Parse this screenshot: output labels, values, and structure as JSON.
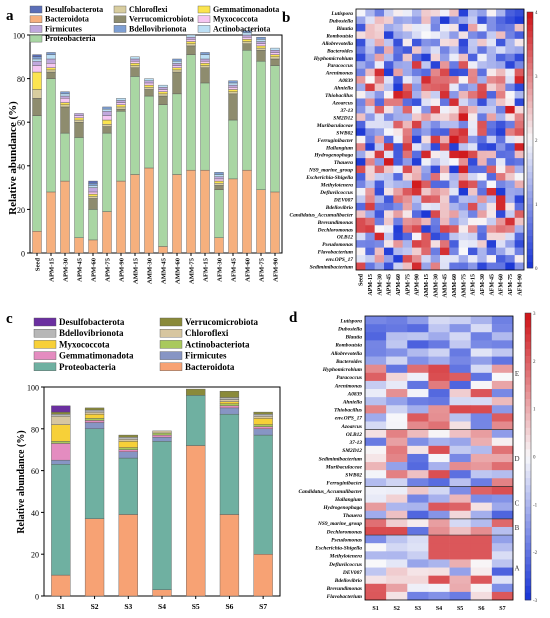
{
  "panel_labels": {
    "a": "a",
    "b": "b",
    "c": "c",
    "d": "d"
  },
  "chart_data": [
    {
      "panel": "a",
      "type": "bar",
      "ylabel": "Relative abundance (%)",
      "ylim": [
        0,
        100
      ],
      "yticks": [
        0,
        20,
        40,
        60,
        80,
        100
      ],
      "categories": [
        "Seed",
        "APM-15",
        "APM-30",
        "APM-45",
        "APM-60",
        "APM-75",
        "APM-90",
        "AMM-15",
        "AMM-30",
        "AMM-45",
        "AMM-60",
        "AMM-75",
        "AFM-15",
        "AFM-30",
        "AFM-45",
        "AFM-60",
        "AFM-75",
        "AFM-90"
      ],
      "legend": [
        "Desulfobacterota",
        "Chloroflexi",
        "Gemmatimonadota",
        "Bacteroidota",
        "Verrucomicrobiota",
        "Myxococcota",
        "Firmicutes",
        "Bdellovibrionota",
        "Actinobacteriota",
        "Proteobacteria"
      ],
      "series": [
        {
          "name": "Bacteroidota",
          "color": "#f6b07e",
          "values": [
            10,
            28,
            33,
            7,
            6,
            19,
            33,
            36,
            39,
            3,
            36,
            38,
            38,
            7,
            34,
            38,
            29,
            28
          ]
        },
        {
          "name": "Proteobacteria",
          "color": "#a9d6a3",
          "values": [
            53,
            52,
            22,
            46,
            14,
            36,
            32,
            45,
            33,
            65,
            37,
            53,
            40,
            22,
            27,
            55,
            59,
            58
          ]
        },
        {
          "name": "Verrucomicrobiota",
          "color": "#8e8c6e",
          "values": [
            8,
            3,
            12,
            7,
            5,
            3,
            1,
            4,
            3,
            4,
            10,
            4,
            7,
            2,
            12,
            3,
            5,
            3
          ]
        },
        {
          "name": "Chloroflexi",
          "color": "#d8cd9f",
          "values": [
            4,
            1,
            1,
            1,
            1,
            1,
            1,
            1,
            1,
            1,
            1,
            1,
            1,
            1,
            1,
            1,
            1,
            1
          ]
        },
        {
          "name": "Gemmatimonadota",
          "color": "#fbe44f",
          "values": [
            8,
            1,
            1,
            1,
            1,
            2,
            1,
            1,
            1,
            1,
            1,
            1,
            1,
            1,
            1,
            1,
            1,
            1
          ]
        },
        {
          "name": "Myxococcota",
          "color": "#f5c6f2",
          "values": [
            3,
            2,
            2,
            1,
            1,
            2,
            1,
            1,
            1,
            1,
            1,
            1,
            1,
            1,
            1,
            1,
            1,
            1
          ]
        },
        {
          "name": "Firmicutes",
          "color": "#c0a8dd",
          "values": [
            2,
            2,
            1,
            1,
            2,
            2,
            1,
            1,
            1,
            1,
            1,
            1,
            1,
            1,
            1,
            1,
            1,
            1
          ]
        },
        {
          "name": "Actinobacteriota",
          "color": "#bcdff5",
          "values": [
            1,
            2,
            1,
            0,
            1,
            1,
            1,
            1,
            1,
            1,
            1,
            1,
            2,
            1,
            1,
            1,
            1,
            1
          ]
        },
        {
          "name": "Bdellovibrionota",
          "color": "#7e9fd3",
          "values": [
            1,
            1,
            1,
            0,
            1,
            1,
            0,
            0,
            0,
            0,
            1,
            0,
            1,
            1,
            1,
            1,
            1,
            0
          ]
        },
        {
          "name": "Desulfobacterota",
          "color": "#5b6fb8",
          "values": [
            1,
            0,
            0,
            0,
            1,
            0,
            0,
            0,
            0,
            0,
            0,
            0,
            0,
            0,
            0,
            0,
            0,
            0
          ]
        }
      ]
    },
    {
      "panel": "b",
      "type": "heatmap",
      "rows": [
        "Lutispora",
        "Dubosiella",
        "Blautia",
        "Romboutsia",
        "Allobrevotella",
        "Bacteroides",
        "Hyphomicrobium",
        "Paracoccus",
        "Arenimonas",
        "A0839",
        "Ahniella",
        "Thiobacillus",
        "Azoarcus",
        "37-13",
        "SM2D12",
        "Muribaculaceae",
        "SWB02",
        "Ferruginibacter",
        "Hallangium",
        "Hydrogenophaga",
        "Thauera",
        "NS9_marine_group",
        "Escherichia-Shigella",
        "Methylotenera",
        "Defluviicoccus",
        "DEV007",
        "Bdellovibrio",
        "Candidatus_Accumulibacter",
        "Brevundimonas",
        "Dechloromonas",
        "OLB12",
        "Pseudomonas",
        "Flavobacterium",
        "env.OPS_17",
        "Sedimimibacterium"
      ],
      "columns": [
        "Seed",
        "APM-15",
        "APM-30",
        "APM-45",
        "APM-60",
        "APM-75",
        "APM-90",
        "AMM-15",
        "AMM-30",
        "AMM-45",
        "AMM-60",
        "AMM-75",
        "AFM-15",
        "AFM-30",
        "AFM-45",
        "AFM-60",
        "AFM-75",
        "AFM-90"
      ],
      "colorbar": {
        "ticks": [
          "4",
          "3",
          "2",
          "1",
          "0"
        ]
      }
    },
    {
      "panel": "c",
      "type": "bar",
      "ylabel": "Relative abundance (%)",
      "ylim": [
        0,
        100
      ],
      "yticks": [
        0,
        20,
        40,
        60,
        80,
        100
      ],
      "categories": [
        "S1",
        "S2",
        "S3",
        "S4",
        "S5",
        "S6",
        "S7"
      ],
      "legend": [
        "Desulfobacterota",
        "Verrucomicrobiota",
        "Bdellovibrionota",
        "Chloroflexi",
        "Myxococcota",
        "Actinobacteriota",
        "Gemmatimonadota",
        "Firmicutes",
        "Proteobacteria",
        "Bacteroidota"
      ],
      "series": [
        {
          "name": "Bacteroidota",
          "color": "#f7a274",
          "values": [
            10,
            37,
            39,
            3,
            72,
            39,
            20
          ]
        },
        {
          "name": "Proteobacteria",
          "color": "#6fb0a1",
          "values": [
            53,
            43,
            27,
            71,
            24,
            48,
            57
          ]
        },
        {
          "name": "Firmicutes",
          "color": "#8795c4",
          "values": [
            2,
            3,
            3,
            2,
            0,
            3,
            3
          ]
        },
        {
          "name": "Gemmatimonadota",
          "color": "#e48cc0",
          "values": [
            8,
            1,
            1,
            1,
            0,
            1,
            1
          ]
        },
        {
          "name": "Actinobacteriota",
          "color": "#a9c95c",
          "values": [
            1,
            1,
            1,
            1,
            0,
            1,
            1
          ]
        },
        {
          "name": "Myxococcota",
          "color": "#f7d038",
          "values": [
            8,
            2,
            3,
            0,
            0,
            1,
            3
          ]
        },
        {
          "name": "Chloroflexi",
          "color": "#d7c6a0",
          "values": [
            4,
            1,
            1,
            1,
            0,
            1,
            1
          ]
        },
        {
          "name": "Bdellovibrionota",
          "color": "#b7b7b7",
          "values": [
            1,
            1,
            1,
            0,
            0,
            1,
            1
          ]
        },
        {
          "name": "Verrucomicrobiota",
          "color": "#8a8a3a",
          "values": [
            1,
            1,
            1,
            0,
            3,
            3,
            1
          ]
        },
        {
          "name": "Desulfobacterota",
          "color": "#6b2fa0",
          "values": [
            3,
            0,
            0,
            0,
            0,
            0,
            0
          ]
        }
      ]
    },
    {
      "panel": "d",
      "type": "heatmap",
      "rows": [
        "Lutispora",
        "Dubosiella",
        "Blautia",
        "Romboutsia",
        "Allobrevotella",
        "Bacteroides",
        "Hyphomicrobium",
        "Paracoccus",
        "Arenimonas",
        "A0839",
        "Ahniella",
        "Thiobacillus",
        "env.OPS_17",
        "Azoarcus",
        "OLB12",
        "37-13",
        "SM2D12",
        "Sedimimibacterium",
        "Muribaculaceae",
        "SWB02",
        "Ferruginibacter",
        "Candidatus_Accumulibacter",
        "Hallangium",
        "Hydrogenophaga",
        "Thauera",
        "NS9_marine_group",
        "Dechloromonas",
        "Pseudomonas",
        "Escherichia-Shigella",
        "Methylotenera",
        "Defluviicoccus",
        "DEV007",
        "Bdellovibrio",
        "Brevundimonas",
        "Flavobacterium"
      ],
      "columns": [
        "S1",
        "S2",
        "S3",
        "S4",
        "S5",
        "S6",
        "S7"
      ],
      "groups": [
        "E",
        "D",
        "C",
        "B",
        "A"
      ],
      "colorbar": {
        "ticks": [
          "3",
          "2",
          "1",
          "0",
          "-1",
          "-2",
          "-3"
        ]
      }
    }
  ]
}
